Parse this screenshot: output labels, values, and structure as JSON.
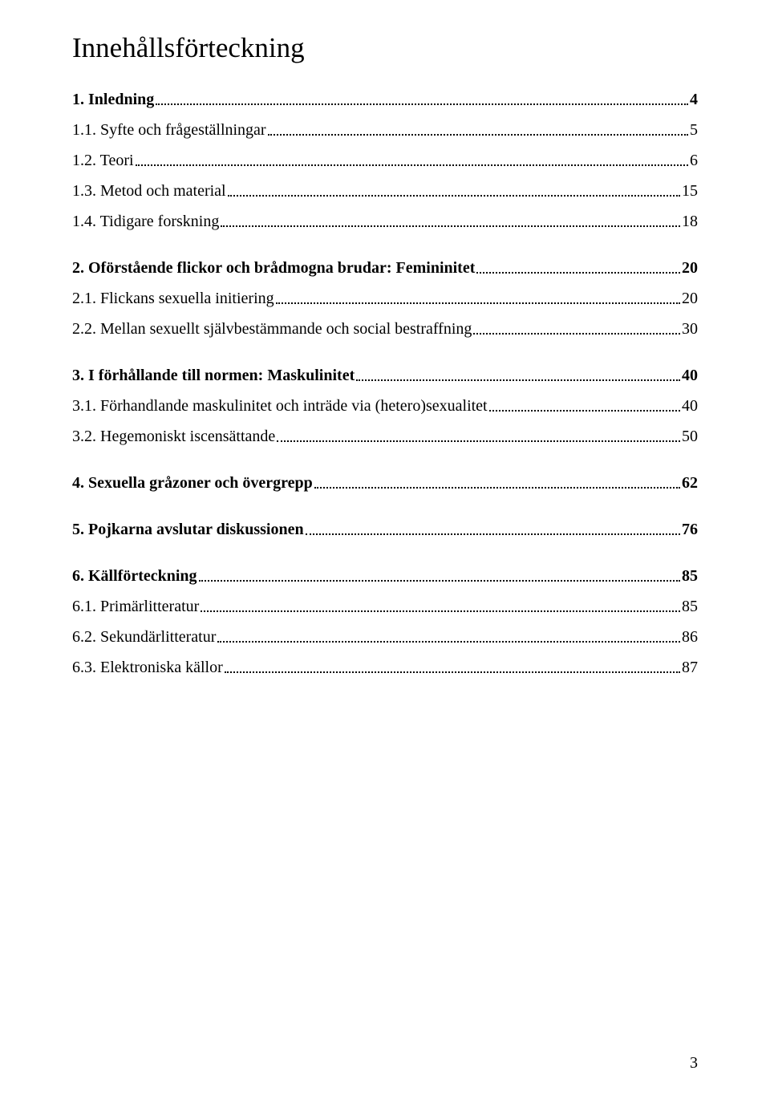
{
  "title": "Innehållsförteckning",
  "page_number": "3",
  "toc": [
    {
      "label": "1. Inledning",
      "page": "4",
      "bold": true,
      "spacer_before": false
    },
    {
      "label": "1.1. Syfte och frågeställningar",
      "page": "5",
      "bold": false,
      "spacer_before": false
    },
    {
      "label": "1.2. Teori",
      "page": "6",
      "bold": false,
      "spacer_before": false
    },
    {
      "label": "1.3. Metod och material",
      "page": "15",
      "bold": false,
      "spacer_before": false
    },
    {
      "label": "1.4. Tidigare forskning",
      "page": "18",
      "bold": false,
      "spacer_before": false
    },
    {
      "label": "2. Oförstående flickor och brådmogna brudar: Femininitet",
      "page": "20",
      "bold": true,
      "spacer_before": true
    },
    {
      "label": "2.1. Flickans sexuella initiering",
      "page": "20",
      "bold": false,
      "spacer_before": false
    },
    {
      "label": "2.2. Mellan sexuellt självbestämmande och social bestraffning",
      "page": "30",
      "bold": false,
      "spacer_before": false
    },
    {
      "label": "3. I förhållande till normen: Maskulinitet",
      "page": "40",
      "bold": true,
      "spacer_before": true
    },
    {
      "label": "3.1. Förhandlande maskulinitet och inträde via (hetero)sexualitet",
      "page": "40",
      "bold": false,
      "spacer_before": false
    },
    {
      "label": "3.2. Hegemoniskt iscensättande ",
      "page": "50",
      "bold": false,
      "spacer_before": false
    },
    {
      "label": "4. Sexuella gråzoner och övergrepp",
      "page": " 62",
      "bold": true,
      "spacer_before": true
    },
    {
      "label": "5. Pojkarna avslutar diskussionen",
      "page": " 76",
      "bold": true,
      "spacer_before": true
    },
    {
      "label": "6. Källförteckning",
      "page": " 85",
      "bold": true,
      "spacer_before": true
    },
    {
      "label": "6.1. Primärlitteratur",
      "page": "85",
      "bold": false,
      "spacer_before": false
    },
    {
      "label": "6.2. Sekundärlitteratur",
      "page": "86",
      "bold": false,
      "spacer_before": false
    },
    {
      "label": "6.3. Elektroniska källor",
      "page": "87",
      "bold": false,
      "spacer_before": false
    }
  ]
}
